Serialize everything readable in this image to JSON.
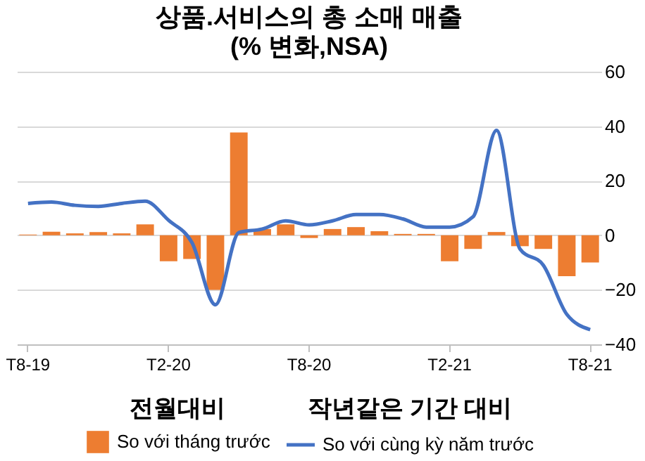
{
  "chart_data": {
    "type": "bar",
    "title": "상품.서비스의 총 소매 매출",
    "subtitle": "(% 변화,NSA)",
    "categories": [
      "T8-19",
      null,
      null,
      null,
      null,
      null,
      "T2-20",
      null,
      null,
      null,
      null,
      null,
      "T8-20",
      null,
      null,
      null,
      null,
      null,
      "T2-21",
      null,
      null,
      null,
      null,
      null,
      "T8-21"
    ],
    "series": [
      {
        "name": "So với tháng trước",
        "color": "#ed7d31",
        "values": [
          0.3,
          1.3,
          0.7,
          1.2,
          0.7,
          4,
          -9.5,
          -8.7,
          -20,
          37.7,
          2.3,
          4,
          -1,
          2.3,
          3,
          1.5,
          0.5,
          0.5,
          -9.5,
          -5,
          1.2,
          -4,
          -5,
          -15,
          -10
        ]
      },
      {
        "name": "So với cùng kỳ năm trước",
        "type": "line",
        "color": "#4472c4",
        "values": [
          11.7,
          12.2,
          11,
          10.6,
          11.7,
          12.5,
          5.5,
          -2.7,
          -25.5,
          1,
          2.3,
          5.3,
          3.8,
          5.3,
          7.6,
          7.6,
          6,
          3,
          3,
          6.8,
          38.5,
          -5,
          -11,
          -29,
          -34.6
        ]
      }
    ],
    "annotations": [
      "전월대비",
      "작년같은 기간 대비"
    ],
    "ylim": [
      -40,
      60
    ],
    "yticks": [
      -40,
      -20,
      0,
      20,
      40,
      60
    ],
    "grid": "y",
    "legend": "bottom",
    "line_style": "solid"
  }
}
